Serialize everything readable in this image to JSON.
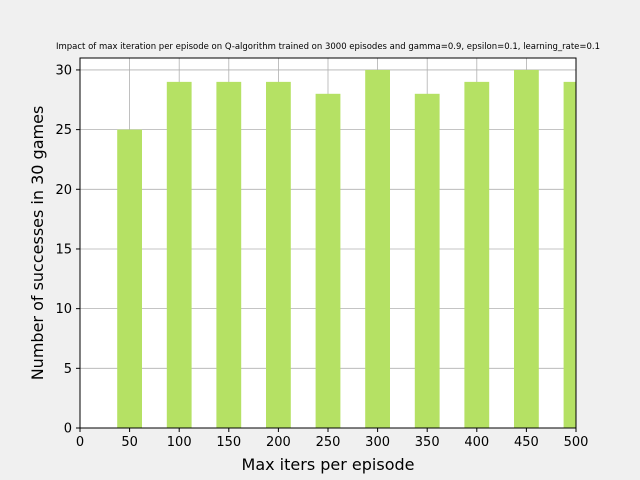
{
  "chart_data": {
    "type": "bar",
    "title": "Impact of max iteration per episode on Q-algorithm trained on 3000 episodes and gamma=0.9, epsilon=0.1, learning_rate=0.1",
    "xlabel": "Max iters per episode",
    "ylabel": "Number of successes in 30 games",
    "x": [
      50,
      100,
      150,
      200,
      250,
      300,
      350,
      400,
      450,
      500
    ],
    "values": [
      25,
      29,
      29,
      29,
      28,
      30,
      28,
      29,
      30,
      29
    ],
    "bar_width": 25,
    "xlim": [
      0,
      500
    ],
    "ylim": [
      0,
      31
    ],
    "xticks": [
      0,
      50,
      100,
      150,
      200,
      250,
      300,
      350,
      400,
      450,
      500
    ],
    "yticks": [
      0,
      5,
      10,
      15,
      20,
      25,
      30
    ],
    "grid": true,
    "bar_color": "#b5e164",
    "background": "#f0f0f0",
    "plot_background": "#ffffff",
    "grid_color": "#b0b0b0"
  }
}
